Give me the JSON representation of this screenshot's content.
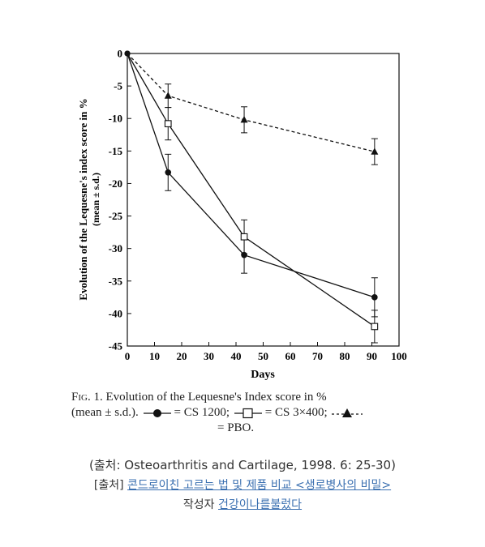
{
  "chart_data": {
    "type": "line",
    "xlabel": "Days",
    "ylabel_line1": "Evolution of the Lequesne's index score in %",
    "ylabel_line2": "(mean ± s.d.)",
    "xlim": [
      0,
      100
    ],
    "ylim": [
      -45,
      0
    ],
    "x_ticks": [
      0,
      10,
      20,
      30,
      40,
      50,
      60,
      70,
      80,
      90,
      100
    ],
    "y_ticks": [
      0,
      -5,
      -10,
      -15,
      -20,
      -25,
      -30,
      -35,
      -40,
      -45
    ],
    "grid": false,
    "series": [
      {
        "name": "CS 1200",
        "marker": "filled-circle",
        "line": "solid",
        "color": "#111111",
        "x": [
          0,
          15,
          43,
          91
        ],
        "y": [
          0,
          -18.3,
          -31,
          -37.5
        ],
        "err": [
          0,
          2.8,
          2.8,
          3
        ]
      },
      {
        "name": "CS 3×400",
        "marker": "open-square",
        "line": "solid",
        "color": "#111111",
        "x": [
          0,
          15,
          43,
          91
        ],
        "y": [
          0,
          -10.8,
          -28.2,
          -42
        ],
        "err": [
          0,
          2.5,
          2.6,
          2.5
        ]
      },
      {
        "name": "PBO",
        "marker": "filled-triangle",
        "line": "dashed",
        "color": "#111111",
        "x": [
          0,
          15,
          43,
          91
        ],
        "y": [
          0,
          -6.5,
          -10.2,
          -15.1
        ],
        "err": [
          0,
          1.8,
          2,
          2
        ]
      }
    ]
  },
  "caption": {
    "fig_label": "Fig. 1.",
    "title": "Evolution of the Lequesne's Index score in %",
    "line2_prefix": "(mean ± s.d.).",
    "eq": "=",
    "cs1200": "CS   1200;",
    "cs3x400": "CS   3×400;",
    "pbo": "= PBO."
  },
  "footer": {
    "source": "(출처: Osteoarthritis and Cartilage, 1998. 6: 25-30)",
    "post_prefix": "[출처]",
    "post_link": "콘드로이친 고르는 법 및 제품 비교 <생로병사의 비밀>",
    "author_prefix": "작성자",
    "author_link": "건강이나를불렀다"
  }
}
